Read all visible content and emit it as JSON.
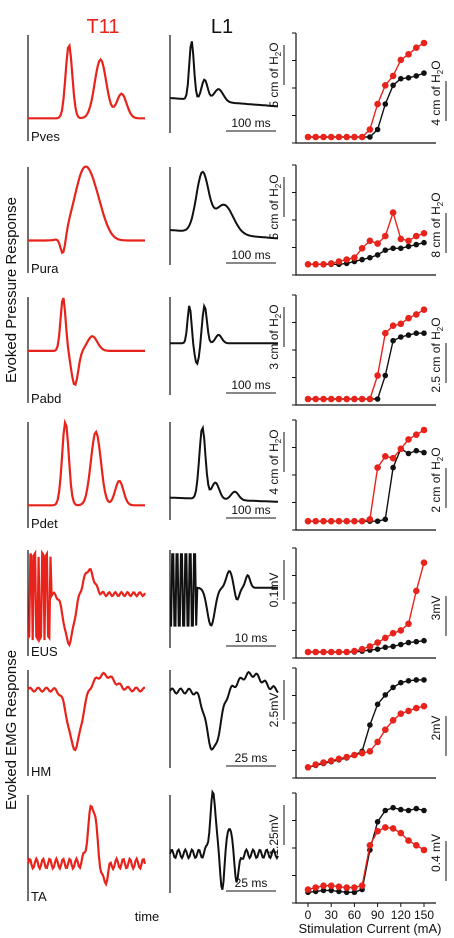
{
  "headers": {
    "t11": "T11",
    "l1": "L1"
  },
  "group_labels": {
    "pressure": "Evoked Pressure Response",
    "emg": "Evoked EMG Response"
  },
  "bottom_labels": {
    "time": "time",
    "xlabel": "Stimulation Current (mA)"
  },
  "colors": {
    "t11": "#e8231c",
    "l1": "#111111"
  },
  "x_ticks": [
    "0",
    "30",
    "60",
    "90",
    "120",
    "150"
  ],
  "rows": [
    {
      "name": "Pves",
      "l1_time": "100 ms",
      "l1_scale": "5 cm of H2O",
      "curve_scale": "4 cm of H2O"
    },
    {
      "name": "Pura",
      "l1_time": "100 ms",
      "l1_scale": "5 cm of H2O",
      "curve_scale": "8 cm of H2O"
    },
    {
      "name": "Pabd",
      "l1_time": "100 ms",
      "l1_scale": "3 cm of H2O",
      "curve_scale": "2.5 cm of H2O"
    },
    {
      "name": "Pdet",
      "l1_time": "100 ms",
      "l1_scale": "4 cm of H2O",
      "curve_scale": "2 cm of H2O"
    },
    {
      "name": "EUS",
      "l1_time": "10 ms",
      "l1_scale": "0.1mV",
      "curve_scale": "3mV"
    },
    {
      "name": "HM",
      "l1_time": "25 ms",
      "l1_scale": "2.5mV",
      "curve_scale": "2mV"
    },
    {
      "name": "TA",
      "l1_time": "25 ms",
      "l1_scale": "1.25mV",
      "curve_scale": "0.4 mV"
    }
  ],
  "chart_data": {
    "type": "line",
    "xlabel": "Stimulation Current (mA)",
    "x": [
      0,
      10,
      20,
      30,
      40,
      50,
      60,
      70,
      80,
      90,
      100,
      110,
      120,
      130,
      140,
      150
    ],
    "panels": [
      {
        "name": "Pves",
        "ylim": [
          0,
          1
        ],
        "series": [
          {
            "name": "T11",
            "values": [
              0,
              0,
              0,
              0,
              0,
              0,
              0,
              0,
              0.08,
              0.35,
              0.55,
              0.65,
              0.82,
              0.88,
              0.95,
              1.0
            ]
          },
          {
            "name": "L1",
            "values": [
              0,
              0,
              0,
              0,
              0,
              0,
              0,
              0,
              0,
              0.08,
              0.35,
              0.55,
              0.62,
              0.63,
              0.65,
              0.68
            ]
          }
        ]
      },
      {
        "name": "Pura",
        "ylim": [
          0,
          1
        ],
        "series": [
          {
            "name": "T11",
            "values": [
              0.05,
              0.05,
              0.05,
              0.06,
              0.08,
              0.1,
              0.12,
              0.22,
              0.3,
              0.27,
              0.35,
              0.6,
              0.32,
              0.3,
              0.35,
              0.38
            ]
          },
          {
            "name": "L1",
            "values": [
              0.05,
              0.05,
              0.05,
              0.05,
              0.05,
              0.06,
              0.08,
              0.1,
              0.12,
              0.15,
              0.2,
              0.22,
              0.22,
              0.24,
              0.26,
              0.28
            ]
          }
        ]
      },
      {
        "name": "Pabd",
        "ylim": [
          0,
          1
        ],
        "series": [
          {
            "name": "T11",
            "values": [
              0,
              0,
              0,
              0,
              0,
              0,
              0,
              0,
              0,
              0.25,
              0.7,
              0.78,
              0.8,
              0.86,
              0.9,
              0.95
            ]
          },
          {
            "name": "L1",
            "values": [
              0,
              0,
              0,
              0,
              0,
              0,
              0,
              0,
              0,
              0,
              0.25,
              0.62,
              0.66,
              0.68,
              0.7,
              0.7
            ]
          }
        ]
      },
      {
        "name": "Pdet",
        "ylim": [
          0,
          1
        ],
        "series": [
          {
            "name": "T11",
            "values": [
              0.03,
              0.03,
              0.03,
              0.03,
              0.03,
              0.03,
              0.03,
              0.03,
              0.05,
              0.6,
              0.72,
              0.7,
              0.8,
              0.9,
              0.95,
              1.0
            ]
          },
          {
            "name": "L1",
            "values": [
              0.03,
              0.03,
              0.03,
              0.03,
              0.03,
              0.03,
              0.03,
              0.03,
              0.03,
              0.03,
              0.05,
              0.6,
              0.8,
              0.75,
              0.78,
              0.76
            ]
          }
        ]
      },
      {
        "name": "EUS",
        "ylim": [
          0,
          1
        ],
        "series": [
          {
            "name": "T11",
            "values": [
              0,
              0,
              0,
              0,
              0,
              0,
              0.01,
              0.03,
              0.06,
              0.1,
              0.15,
              0.2,
              0.23,
              0.3,
              0.65,
              0.95
            ]
          },
          {
            "name": "L1",
            "values": [
              0,
              0,
              0,
              0,
              0,
              0,
              0,
              0.01,
              0.02,
              0.03,
              0.05,
              0.06,
              0.08,
              0.1,
              0.11,
              0.12
            ]
          }
        ]
      },
      {
        "name": "HM",
        "ylim": [
          0,
          1
        ],
        "series": [
          {
            "name": "T11",
            "values": [
              0.05,
              0.08,
              0.1,
              0.12,
              0.14,
              0.16,
              0.18,
              0.2,
              0.22,
              0.32,
              0.45,
              0.55,
              0.62,
              0.65,
              0.68,
              0.7
            ]
          },
          {
            "name": "L1",
            "values": [
              0.05,
              0.07,
              0.09,
              0.11,
              0.13,
              0.15,
              0.18,
              0.22,
              0.5,
              0.72,
              0.82,
              0.9,
              0.95,
              0.97,
              0.98,
              0.98
            ]
          }
        ]
      },
      {
        "name": "TA",
        "ylim": [
          0,
          1
        ],
        "series": [
          {
            "name": "T11",
            "values": [
              0.08,
              0.1,
              0.12,
              0.12,
              0.11,
              0.1,
              0.1,
              0.12,
              0.55,
              0.7,
              0.74,
              0.73,
              0.68,
              0.6,
              0.55,
              0.5
            ]
          },
          {
            "name": "L1",
            "values": [
              0.05,
              0.06,
              0.07,
              0.07,
              0.06,
              0.05,
              0.05,
              0.08,
              0.5,
              0.8,
              0.92,
              0.95,
              0.93,
              0.92,
              0.94,
              0.92
            ]
          }
        ]
      }
    ]
  }
}
